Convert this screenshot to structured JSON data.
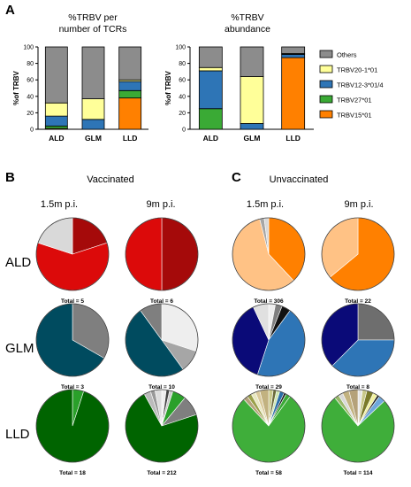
{
  "panels": {
    "a": "A",
    "b": "B",
    "c": "C"
  },
  "bar_titles": [
    [
      "%TRBV per",
      "number of TCRs"
    ],
    [
      "%TRBV",
      "abundance"
    ]
  ],
  "group_labels": {
    "vaccinated": "Vaccinated",
    "unvaccinated": "Unvaccinated"
  },
  "timepoints": [
    "1.5m p.i.",
    "9m p.i.",
    "1.5m p.i.",
    "9m p.i."
  ],
  "row_labels": [
    "ALD",
    "GLM",
    "LLD"
  ],
  "colors": {
    "others": "#8c8c8c",
    "trbv20": "#ffff99",
    "trbv12": "#2e75b6",
    "trbv27": "#3aaa35",
    "trbv15": "#ff8000"
  },
  "chart_data": [
    {
      "type": "bar",
      "stacked": true,
      "title": "%TRBV per number of TCRs",
      "ylabel": "%of TRBV",
      "ylim": [
        0,
        100
      ],
      "yticks": [
        0,
        20,
        40,
        60,
        80,
        100
      ],
      "categories": [
        "ALD",
        "GLM",
        "LLD"
      ],
      "series": [
        {
          "name": "TRBV15*01",
          "color": "#ff8000",
          "values": [
            1,
            0,
            38
          ]
        },
        {
          "name": "TRBV27*01",
          "color": "#3aaa35",
          "values": [
            3,
            0,
            9
          ]
        },
        {
          "name": "TRBV12-3*01/4",
          "color": "#2e75b6",
          "values": [
            12,
            12,
            11
          ]
        },
        {
          "name": "TRBV20-1*01",
          "color": "#ffff99",
          "values": [
            16,
            25,
            2
          ]
        },
        {
          "name": "Others",
          "color": "#8c8c8c",
          "values": [
            68,
            63,
            40
          ]
        }
      ]
    },
    {
      "type": "bar",
      "stacked": true,
      "title": "%TRBV abundance",
      "ylabel": "%of TRBV",
      "ylim": [
        0,
        100
      ],
      "yticks": [
        0,
        20,
        40,
        60,
        80,
        100
      ],
      "categories": [
        "ALD",
        "GLM",
        "LLD"
      ],
      "legend": "right",
      "series": [
        {
          "name": "TRBV15*01",
          "color": "#ff8000",
          "values": [
            0,
            0,
            87
          ]
        },
        {
          "name": "TRBV27*01",
          "color": "#3aaa35",
          "values": [
            25,
            0,
            0
          ]
        },
        {
          "name": "TRBV12-3*01/4",
          "color": "#2e75b6",
          "values": [
            46,
            7,
            4
          ]
        },
        {
          "name": "TRBV20-1*01",
          "color": "#ffff99",
          "values": [
            4,
            57,
            1
          ]
        },
        {
          "name": "Others",
          "color": "#8c8c8c",
          "values": [
            25,
            36,
            8
          ]
        }
      ]
    },
    {
      "type": "pie",
      "pies": [
        {
          "row": "ALD",
          "group": "Vaccinated",
          "timepoint": "1.5m p.i.",
          "total": "Total = 5",
          "slices": [
            {
              "value": 20,
              "color": "#a50a0a"
            },
            {
              "value": 60,
              "color": "#dc0a0a"
            },
            {
              "value": 20,
              "color": "#d9d9d9"
            }
          ]
        },
        {
          "row": "ALD",
          "group": "Vaccinated",
          "timepoint": "9m p.i.",
          "total": "Total = 6",
          "slices": [
            {
              "value": 50,
              "color": "#a50a0a"
            },
            {
              "value": 50,
              "color": "#dc0a0a"
            }
          ]
        },
        {
          "row": "ALD",
          "group": "Unvaccinated",
          "timepoint": "1.5m p.i.",
          "total": "Total = 306",
          "slices": [
            {
              "value": 38,
              "color": "#ff8000"
            },
            {
              "value": 58,
              "color": "#ffc285"
            },
            {
              "value": 2,
              "color": "#a6a6a6"
            },
            {
              "value": 2,
              "color": "#d9d9d9"
            }
          ]
        },
        {
          "row": "ALD",
          "group": "Unvaccinated",
          "timepoint": "9m p.i.",
          "total": "Total = 22",
          "slices": [
            {
              "value": 64,
              "color": "#ff8000"
            },
            {
              "value": 36,
              "color": "#ffc285"
            }
          ]
        },
        {
          "row": "GLM",
          "group": "Vaccinated",
          "timepoint": "1.5m p.i.",
          "total": "Total = 3",
          "slices": [
            {
              "value": 33.3,
              "color": "#7f7f7f"
            },
            {
              "value": 66.7,
              "color": "#004b5f"
            }
          ]
        },
        {
          "row": "GLM",
          "group": "Vaccinated",
          "timepoint": "9m p.i.",
          "total": "Total = 10",
          "slices": [
            {
              "value": 30,
              "color": "#eeeeee"
            },
            {
              "value": 10,
              "color": "#a6a6a6"
            },
            {
              "value": 50,
              "color": "#004b5f"
            },
            {
              "value": 10,
              "color": "#7f7f7f"
            }
          ]
        },
        {
          "row": "GLM",
          "group": "Unvaccinated",
          "timepoint": "1.5m p.i.",
          "total": "Total = 29",
          "slices": [
            {
              "value": 3,
              "color": "#eeeeee"
            },
            {
              "value": 3,
              "color": "#7f7f7f"
            },
            {
              "value": 4,
              "color": "#111111"
            },
            {
              "value": 45,
              "color": "#2e75b6"
            },
            {
              "value": 38,
              "color": "#0a0a78"
            },
            {
              "value": 7,
              "color": "#e0e0e0"
            }
          ]
        },
        {
          "row": "GLM",
          "group": "Unvaccinated",
          "timepoint": "9m p.i.",
          "total": "Total = 8",
          "slices": [
            {
              "value": 25,
              "color": "#6e6e6e"
            },
            {
              "value": 37.5,
              "color": "#2e75b6"
            },
            {
              "value": 37.5,
              "color": "#0a0a78"
            }
          ]
        },
        {
          "row": "LLD",
          "group": "Vaccinated",
          "timepoint": "1.5m p.i.",
          "total": "Total = 18",
          "slices": [
            {
              "value": 5,
              "color": "#2aa02a"
            },
            {
              "value": 95,
              "color": "#006400"
            }
          ]
        },
        {
          "row": "LLD",
          "group": "Vaccinated",
          "timepoint": "9m p.i.",
          "total": "Total = 212",
          "slices": [
            {
              "value": 2,
              "color": "#eeeeee"
            },
            {
              "value": 1.5,
              "color": "#444444"
            },
            {
              "value": 1.5,
              "color": "#cccccc"
            },
            {
              "value": 6,
              "color": "#2aa02a"
            },
            {
              "value": 9,
              "color": "#7f7f7f"
            },
            {
              "value": 72,
              "color": "#006400"
            },
            {
              "value": 3,
              "color": "#bbbbbb"
            },
            {
              "value": 2,
              "color": "#999999"
            },
            {
              "value": 3,
              "color": "#dddddd"
            }
          ]
        },
        {
          "row": "LLD",
          "group": "Unvaccinated",
          "timepoint": "1.5m p.i.",
          "total": "Total = 58",
          "slices": [
            {
              "value": 2,
              "color": "#c9c98a"
            },
            {
              "value": 1.5,
              "color": "#6b6b3a"
            },
            {
              "value": 1.5,
              "color": "#cfe8b0"
            },
            {
              "value": 2,
              "color": "#2b6fa8"
            },
            {
              "value": 1,
              "color": "#1a1a1a"
            },
            {
              "value": 2,
              "color": "#3aaa35"
            },
            {
              "value": 78,
              "color": "#3fae3a"
            },
            {
              "value": 2,
              "color": "#b5a27a"
            },
            {
              "value": 2,
              "color": "#9aa04a"
            },
            {
              "value": 2,
              "color": "#e8e8c0"
            },
            {
              "value": 2,
              "color": "#d9c99a"
            },
            {
              "value": 4,
              "color": "#c2b280"
            }
          ]
        },
        {
          "row": "LLD",
          "group": "Unvaccinated",
          "timepoint": "9m p.i.",
          "total": "Total = 114",
          "slices": [
            {
              "value": 2,
              "color": "#e6e6e6"
            },
            {
              "value": 2,
              "color": "#c9c98a"
            },
            {
              "value": 3,
              "color": "#7a7a2a"
            },
            {
              "value": 2,
              "color": "#f2f2a0"
            },
            {
              "value": 1,
              "color": "#1a1a1a"
            },
            {
              "value": 3,
              "color": "#6fa8dc"
            },
            {
              "value": 76,
              "color": "#3fae3a"
            },
            {
              "value": 2,
              "color": "#9ab86a"
            },
            {
              "value": 2,
              "color": "#d9d9d9"
            },
            {
              "value": 3,
              "color": "#c2b280"
            },
            {
              "value": 4,
              "color": "#b5a27a"
            }
          ]
        }
      ]
    }
  ]
}
